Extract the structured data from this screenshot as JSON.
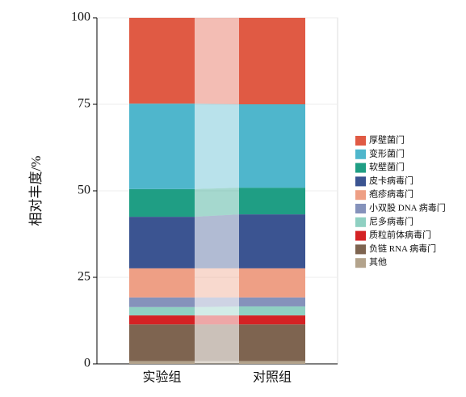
{
  "chart_data": {
    "type": "stacked_bar",
    "y_label": "相对丰度/%",
    "categories": [
      "实验组",
      "对照组"
    ],
    "series": [
      {
        "name": "其他",
        "color": "#b3a38c",
        "values": [
          0.8,
          0.8
        ]
      },
      {
        "name": "负链 RNA 病毒门",
        "color": "#7e6450",
        "values": [
          10.6,
          10.6
        ]
      },
      {
        "name": "质粒前体病毒门",
        "color": "#d42224",
        "values": [
          2.6,
          2.6
        ]
      },
      {
        "name": "尼多病毒门",
        "color": "#8fd0c2",
        "values": [
          2.4,
          2.6
        ]
      },
      {
        "name": "小双股 DNA 病毒门",
        "color": "#8592bb",
        "values": [
          2.8,
          2.6
        ]
      },
      {
        "name": "疱疹病毒门",
        "color": "#ee9f85",
        "values": [
          8.4,
          8.4
        ]
      },
      {
        "name": "皮卡病毒门",
        "color": "#3b5491",
        "values": [
          14.9,
          15.6
        ]
      },
      {
        "name": "软壁菌门",
        "color": "#1f9e84",
        "values": [
          8.0,
          7.7
        ]
      },
      {
        "name": "变形菌门",
        "color": "#4fb6cc",
        "values": [
          24.7,
          24.1
        ]
      },
      {
        "name": "厚壁菌门",
        "color": "#e05a44",
        "values": [
          24.8,
          25.0
        ]
      }
    ],
    "ylim": [
      0,
      100
    ],
    "yticks": [
      0,
      25,
      50,
      75,
      100
    ],
    "grid": true
  }
}
